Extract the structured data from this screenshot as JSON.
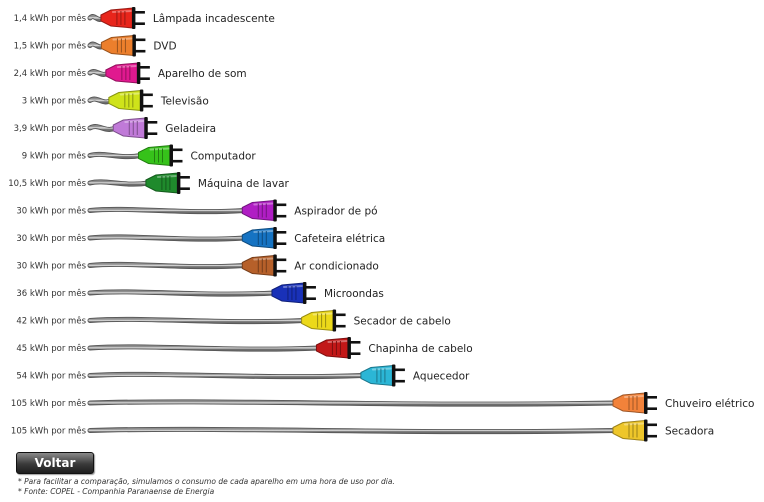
{
  "chart_data": {
    "type": "bar",
    "unit": "kWh por mês",
    "items": [
      {
        "value_label": "1,4 kWh por mês",
        "value": 1.4,
        "name": "Lâmpada incadescente",
        "color": "#e8251b"
      },
      {
        "value_label": "1,5 kWh por mês",
        "value": 1.5,
        "name": "DVD",
        "color": "#ec7f2c"
      },
      {
        "value_label": "2,4 kWh por mês",
        "value": 2.4,
        "name": "Aparelho de som",
        "color": "#e0198f"
      },
      {
        "value_label": "3 kWh por mês",
        "value": 3,
        "name": "Televisão",
        "color": "#cfe31a"
      },
      {
        "value_label": "3,9 kWh por mês",
        "value": 3.9,
        "name": "Geladeira",
        "color": "#c07ad8"
      },
      {
        "value_label": "9 kWh por mês",
        "value": 9,
        "name": "Computador",
        "color": "#36c21a"
      },
      {
        "value_label": "10,5 kWh por mês",
        "value": 10.5,
        "name": "Máquina de lavar",
        "color": "#1f8a2c"
      },
      {
        "value_label": "30 kWh por mês",
        "value": 30,
        "name": "Aspirador de pó",
        "color": "#b01ec4"
      },
      {
        "value_label": "30 kWh por mês",
        "value": 30,
        "name": "Cafeteira elétrica",
        "color": "#1673c2"
      },
      {
        "value_label": "30 kWh por mês",
        "value": 30,
        "name": "Ar condicionado",
        "color": "#b6602a"
      },
      {
        "value_label": "36 kWh por mês",
        "value": 36,
        "name": "Microondas",
        "color": "#1931b8"
      },
      {
        "value_label": "42 kWh por mês",
        "value": 42,
        "name": "Secador de cabelo",
        "color": "#ecd91a"
      },
      {
        "value_label": "45 kWh por mês",
        "value": 45,
        "name": "Chapinha de cabelo",
        "color": "#c21818"
      },
      {
        "value_label": "54 kWh por mês",
        "value": 54,
        "name": "Aquecedor",
        "color": "#2bb6d6"
      },
      {
        "value_label": "105 kWh por mês",
        "value": 105,
        "name": "Chuveiro elétrico",
        "color": "#f2823a"
      },
      {
        "value_label": "105 kWh por mês",
        "value": 105,
        "name": "Secadora",
        "color": "#eec62a"
      }
    ]
  },
  "ui": {
    "back_button_label": "Voltar",
    "footnotes": [
      "* Para facilitar a comparação, simulamos o consumo de cada aparelho em uma hora de uso por dia.",
      "* Fonte: COPEL - Companhia Paranaense de Energia"
    ]
  }
}
